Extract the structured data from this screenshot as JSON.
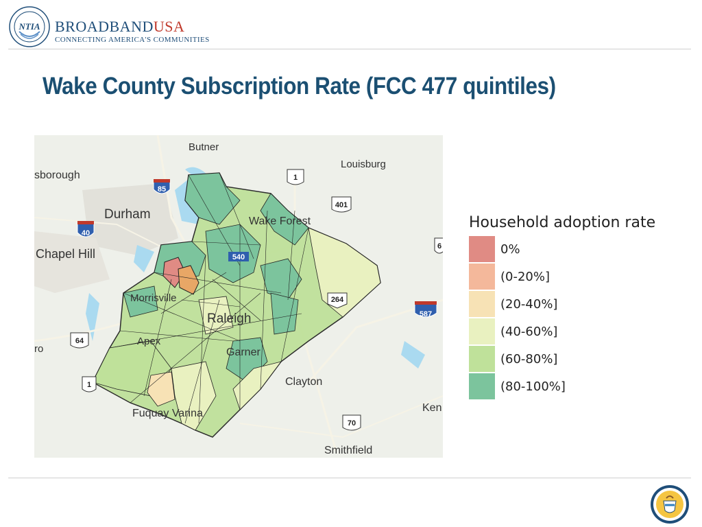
{
  "header": {
    "brand_main": "BROADBAND",
    "brand_accent": "USA",
    "tagline": "CONNECTING AMERICA'S COMMUNITIES",
    "logo_text": "NTIA"
  },
  "title": "Wake County Subscription Rate (FCC 477 quintiles)",
  "map": {
    "places": [
      "Butner",
      "Louisburg",
      "sborough",
      "Durham",
      "Wake Forest",
      "Chapel Hill",
      "Morrisville",
      "Raleigh",
      "Apex",
      "Garner",
      "Clayton",
      "Fuquay Varina",
      "Smithfield",
      "Ken",
      "ro"
    ],
    "route_shields": [
      "85",
      "1",
      "401",
      "40",
      "540",
      "264",
      "587",
      "64",
      "1",
      "70",
      "6"
    ]
  },
  "legend": {
    "title": "Household adoption rate",
    "items": [
      {
        "label": "0%",
        "color": "#e08b84"
      },
      {
        "label": "(0-20%]",
        "color": "#f4b89b"
      },
      {
        "label": "(20-40%]",
        "color": "#f7e2b5"
      },
      {
        "label": "(40-60%]",
        "color": "#e9f1c0"
      },
      {
        "label": "(60-80%]",
        "color": "#bfe19a"
      },
      {
        "label": "(80-100%]",
        "color": "#7cc49d"
      }
    ]
  }
}
